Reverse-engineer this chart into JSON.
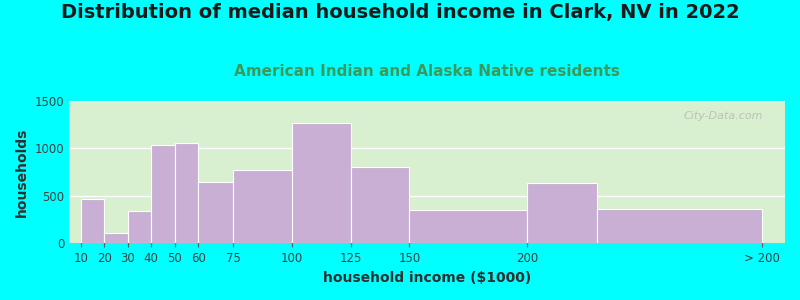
{
  "title": "Distribution of median household income in Clark, NV in 2022",
  "subtitle": "American Indian and Alaska Native residents",
  "xlabel": "household income ($1000)",
  "ylabel": "households",
  "background_color": "#00FFFF",
  "plot_bg_left": "#d8efd0",
  "plot_bg_right": "#f8f8ff",
  "bar_color": "#c9afd4",
  "bar_edge_color": "#ffffff",
  "bin_left_edges": [
    10,
    20,
    30,
    40,
    50,
    60,
    75,
    100,
    125,
    150,
    200,
    230
  ],
  "bin_widths": [
    10,
    10,
    10,
    10,
    10,
    15,
    25,
    25,
    25,
    50,
    30,
    70
  ],
  "values": [
    470,
    110,
    340,
    1040,
    1055,
    650,
    770,
    1270,
    800,
    355,
    640,
    365
  ],
  "tick_positions": [
    10,
    20,
    30,
    40,
    50,
    60,
    75,
    100,
    125,
    150,
    200,
    300
  ],
  "tick_labels": [
    "10",
    "20",
    "30",
    "40",
    "50",
    "60",
    "75",
    "100",
    "125",
    "150",
    "200",
    "> 200"
  ],
  "xlim": [
    5,
    310
  ],
  "ylim": [
    0,
    1500
  ],
  "yticks": [
    0,
    500,
    1000,
    1500
  ],
  "title_fontsize": 14,
  "subtitle_fontsize": 11,
  "subtitle_color": "#3a9a5c",
  "axis_label_fontsize": 10,
  "tick_fontsize": 8.5,
  "watermark_text": "City-Data.com",
  "watermark_color": "#b0b0b0"
}
